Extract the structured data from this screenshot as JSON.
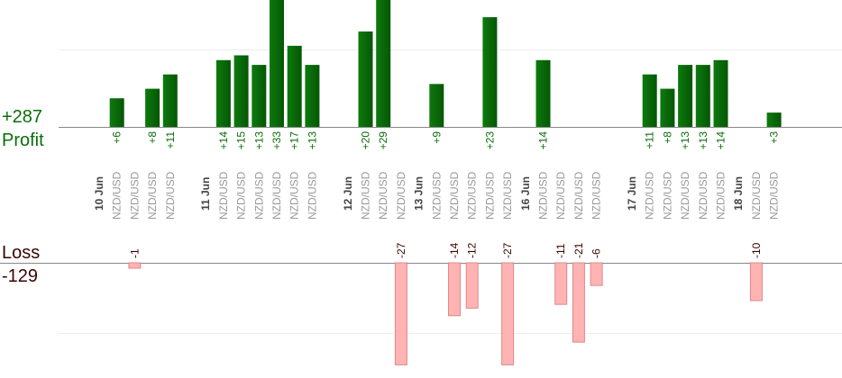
{
  "chart_data": {
    "type": "bar",
    "profit_total": "+287",
    "profit_label": "Profit",
    "loss_label": "Loss",
    "loss_total": "-129",
    "colors": {
      "profit": "#0a6e0a",
      "loss": "#ffb3b3",
      "axis": "#888888",
      "date": "#444444"
    },
    "dates": [
      {
        "label": "10 Jun",
        "slot": 0
      },
      {
        "label": "11 Jun",
        "slot": 6
      },
      {
        "label": "12 Jun",
        "slot": 14
      },
      {
        "label": "13 Jun",
        "slot": 18
      },
      {
        "label": "16 Jun",
        "slot": 24
      },
      {
        "label": "17 Jun",
        "slot": 30
      },
      {
        "label": "18 Jun",
        "slot": 36
      }
    ],
    "trades": [
      {
        "slot": 1,
        "pair": "NZD/USD",
        "value": 6
      },
      {
        "slot": 2,
        "pair": "NZD/USD",
        "value": -1
      },
      {
        "slot": 3,
        "pair": "NZD/USD",
        "value": 8
      },
      {
        "slot": 4,
        "pair": "NZD/USD",
        "value": 11
      },
      {
        "slot": 7,
        "pair": "NZD/USD",
        "value": 14
      },
      {
        "slot": 8,
        "pair": "NZD/USD",
        "value": 15
      },
      {
        "slot": 9,
        "pair": "NZD/USD",
        "value": 13
      },
      {
        "slot": 10,
        "pair": "NZD/USD",
        "value": 33
      },
      {
        "slot": 11,
        "pair": "NZD/USD",
        "value": 17
      },
      {
        "slot": 12,
        "pair": "NZD/USD",
        "value": 13
      },
      {
        "slot": 15,
        "pair": "NZD/USD",
        "value": 20
      },
      {
        "slot": 16,
        "pair": "NZD/USD",
        "value": 29
      },
      {
        "slot": 17,
        "pair": "NZD/USD",
        "value": -27
      },
      {
        "slot": 19,
        "pair": "NZD/USD",
        "value": 9
      },
      {
        "slot": 20,
        "pair": "NZD/USD",
        "value": -14
      },
      {
        "slot": 21,
        "pair": "NZD/USD",
        "value": -12
      },
      {
        "slot": 22,
        "pair": "NZD/USD",
        "value": 23
      },
      {
        "slot": 23,
        "pair": "NZD/USD",
        "value": -27
      },
      {
        "slot": 25,
        "pair": "NZD/USD",
        "value": 14
      },
      {
        "slot": 26,
        "pair": "NZD/USD",
        "value": -11
      },
      {
        "slot": 27,
        "pair": "NZD/USD",
        "value": -21
      },
      {
        "slot": 28,
        "pair": "NZD/USD",
        "value": -6
      },
      {
        "slot": 31,
        "pair": "NZD/USD",
        "value": 11
      },
      {
        "slot": 32,
        "pair": "NZD/USD",
        "value": 8
      },
      {
        "slot": 33,
        "pair": "NZD/USD",
        "value": 13
      },
      {
        "slot": 34,
        "pair": "NZD/USD",
        "value": 13
      },
      {
        "slot": 35,
        "pair": "NZD/USD",
        "value": 14
      },
      {
        "slot": 37,
        "pair": "NZD/USD",
        "value": -10
      },
      {
        "slot": 38,
        "pair": "NZD/USD",
        "value": 3
      }
    ]
  }
}
